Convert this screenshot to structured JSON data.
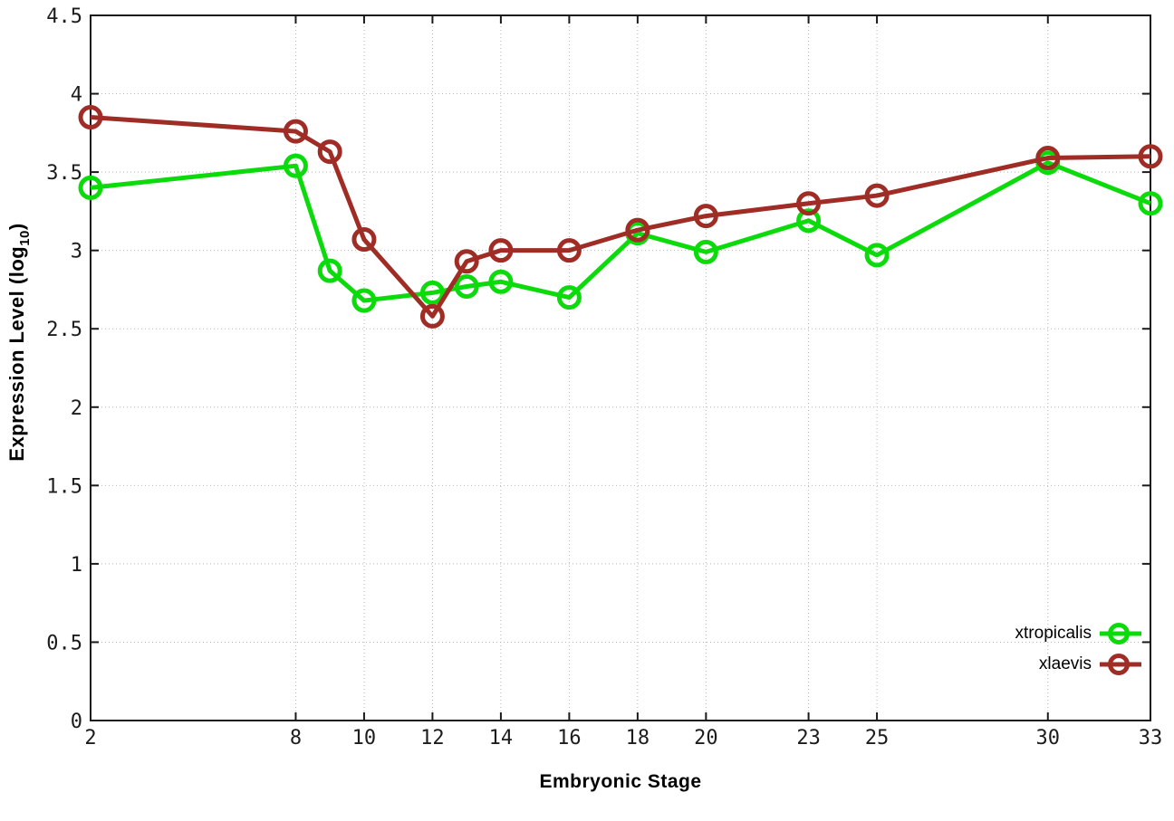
{
  "chart_data": {
    "type": "line",
    "title": "",
    "xlabel": "Embryonic Stage",
    "ylabel_prefix": "Expression Level (log",
    "ylabel_subscript": "10",
    "ylabel_suffix": ")",
    "x": [
      2,
      8,
      9,
      10,
      12,
      13,
      14,
      16,
      18,
      20,
      23,
      25,
      30,
      33
    ],
    "series": [
      {
        "name": "xtropicalis",
        "color": "#0bdb0b",
        "values": [
          3.4,
          3.54,
          2.87,
          2.68,
          2.73,
          2.77,
          2.8,
          2.7,
          3.11,
          2.99,
          3.19,
          2.97,
          3.56,
          3.3
        ]
      },
      {
        "name": "xlaevis",
        "color": "#a02c26",
        "values": [
          3.85,
          3.76,
          3.63,
          3.07,
          2.58,
          2.93,
          3.0,
          3.0,
          3.13,
          3.22,
          3.3,
          3.35,
          3.59,
          3.6
        ]
      }
    ],
    "x_tick_values": [
      2,
      8,
      10,
      12,
      14,
      16,
      18,
      20,
      23,
      25,
      30,
      33
    ],
    "x_tick_labels": [
      "2",
      "8",
      "10",
      "12",
      "14",
      "16",
      "18",
      "20",
      "23",
      "25",
      "30",
      "33"
    ],
    "y_tick_values": [
      0,
      0.5,
      1,
      1.5,
      2,
      2.5,
      3,
      3.5,
      4,
      4.5
    ],
    "y_tick_labels": [
      "0",
      "0.5",
      "1",
      "1.5",
      "2",
      "2.5",
      "3",
      "3.5",
      "4",
      "4.5"
    ],
    "xlim": [
      2,
      33
    ],
    "ylim": [
      0,
      4.5
    ],
    "grid": true,
    "legend_position": "bottom-right",
    "axis_color": "#1a1a1a",
    "grid_color": "#b5b5b5"
  }
}
